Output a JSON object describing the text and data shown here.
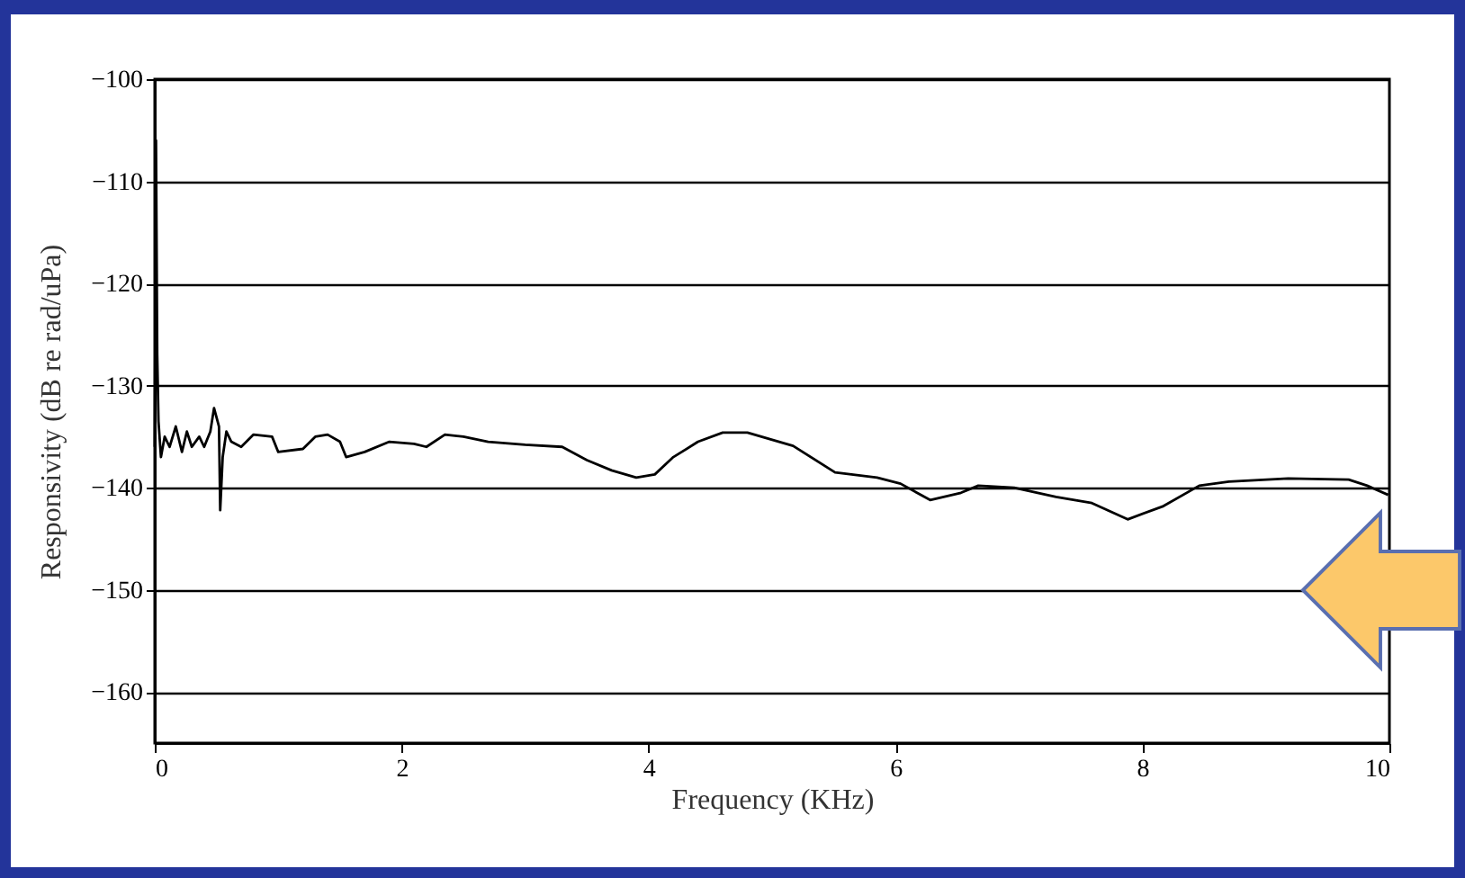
{
  "chart_data": {
    "type": "line",
    "xlabel": "Frequency (KHz)",
    "ylabel": "Responsivity (dB re rad/uPa)",
    "x": [
      0,
      0.01,
      0.02,
      0.03,
      0.05,
      0.08,
      0.12,
      0.17,
      0.22,
      0.26,
      0.3,
      0.36,
      0.4,
      0.45,
      0.48,
      0.52,
      0.53,
      0.55,
      0.58,
      0.62,
      0.7,
      0.8,
      0.95,
      1.0,
      1.2,
      1.3,
      1.4,
      1.5,
      1.55,
      1.7,
      1.9,
      2.1,
      2.2,
      2.35,
      2.5,
      2.7,
      3.0,
      3.3,
      3.5,
      3.7,
      3.9,
      4.05,
      4.2,
      4.4,
      4.6,
      4.8,
      5.17,
      5.51,
      5.85,
      6.04,
      6.28,
      6.53,
      6.67,
      6.96,
      7.3,
      7.59,
      7.88,
      8.17,
      8.46,
      8.7,
      9.18,
      9.67,
      9.82,
      9.99
    ],
    "series": [
      {
        "color": "#000000",
        "values": [
          -136,
          -106,
          -127,
          -133.5,
          -137,
          -135,
          -136,
          -134,
          -136.5,
          -134.5,
          -136,
          -135,
          -136,
          -134.5,
          -132.2,
          -134,
          -142.2,
          -137,
          -134.5,
          -135.5,
          -136,
          -134.8,
          -135,
          -136.5,
          -136.2,
          -135,
          -134.8,
          -135.5,
          -137,
          -136.5,
          -135.5,
          -135.7,
          -136,
          -134.8,
          -135,
          -135.5,
          -135.8,
          -136,
          -137.3,
          -138.3,
          -139,
          -138.7,
          -137,
          -135.5,
          -134.6,
          -134.6,
          -135.9,
          -138.5,
          -139,
          -139.6,
          -141.2,
          -140.5,
          -139.8,
          -140,
          -140.9,
          -141.5,
          -143.1,
          -141.8,
          -139.8,
          -139.4,
          -139.1,
          -139.2,
          -139.8,
          -140.7
        ]
      }
    ],
    "xlim": [
      0,
      10
    ],
    "xticks": [
      0,
      2,
      4,
      6,
      8,
      10
    ],
    "ylim": [
      -165,
      -100
    ],
    "yticks": [
      -100,
      -110,
      -120,
      -130,
      -140,
      -150,
      -160
    ],
    "grid": "y",
    "marker": "none",
    "line_style": "solid"
  }
}
